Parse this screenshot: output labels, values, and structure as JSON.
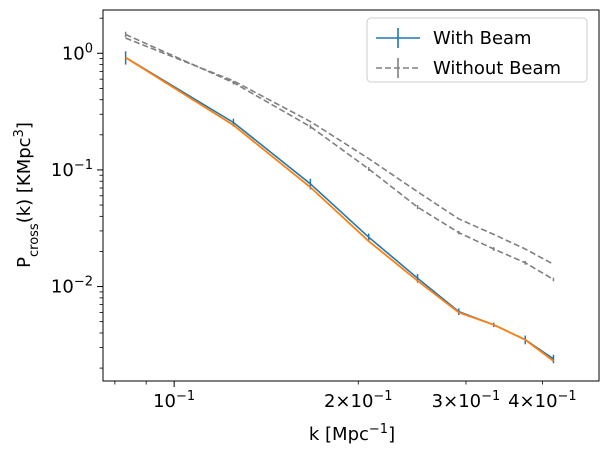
{
  "chart_data": {
    "type": "line",
    "xscale": "log",
    "yscale": "log",
    "xlim": [
      0.0765,
      0.495
    ],
    "ylim": [
      0.00155,
      2.35
    ],
    "xlabel": "k [Mpc^-1]",
    "ylabel": "P_cross(k) [KMpc^3]",
    "xticks": [
      {
        "value": 0.1,
        "mantissa": "",
        "base": "10",
        "exp": "−1"
      },
      {
        "value": 0.2,
        "mantissa": "2×",
        "base": "10",
        "exp": "−1"
      },
      {
        "value": 0.3,
        "mantissa": "3×",
        "base": "10",
        "exp": "−1"
      },
      {
        "value": 0.4,
        "mantissa": "4×",
        "base": "10",
        "exp": "−1"
      }
    ],
    "yticks": [
      {
        "value": 1,
        "base": "10",
        "exp": "0"
      },
      {
        "value": 0.1,
        "base": "10",
        "exp": "−1"
      },
      {
        "value": 0.01,
        "base": "10",
        "exp": "−2"
      }
    ],
    "legend_position": "top-right",
    "series": [
      {
        "name": "With Beam",
        "color": "#1f77b4",
        "style": "solid",
        "x": [
          0.0833,
          0.125,
          0.167,
          0.208,
          0.25,
          0.292,
          0.333,
          0.375,
          0.417
        ],
        "y": [
          0.92,
          0.255,
          0.076,
          0.0265,
          0.0118,
          0.0061,
          0.0047,
          0.0035,
          0.0024
        ],
        "err": [
          0.12,
          0.02,
          0.008,
          0.002,
          0.001,
          0.0004,
          0.0002,
          0.0003,
          0.0002
        ]
      },
      {
        "name": "",
        "color": "#ff7f0e",
        "style": "solid",
        "x": [
          0.0833,
          0.125,
          0.167,
          0.208,
          0.25,
          0.292,
          0.333,
          0.375,
          0.417
        ],
        "y": [
          0.92,
          0.242,
          0.071,
          0.0245,
          0.0112,
          0.006,
          0.0047,
          0.0035,
          0.0023
        ],
        "err": []
      },
      {
        "name": "Without Beam",
        "color": "#808080",
        "style": "dashed",
        "x": [
          0.0833,
          0.125,
          0.167,
          0.208,
          0.25,
          0.292,
          0.333,
          0.375,
          0.417
        ],
        "y": [
          1.45,
          0.56,
          0.235,
          0.102,
          0.048,
          0.029,
          0.021,
          0.016,
          0.0115
        ],
        "err": [
          0.08,
          0.02,
          0.01,
          0.004,
          0.002,
          0.001,
          0.0008,
          0.0006,
          0.0004
        ]
      },
      {
        "name": "",
        "color": "#808080",
        "style": "dashed",
        "x": [
          0.0833,
          0.125,
          0.167,
          0.208,
          0.25,
          0.292,
          0.333,
          0.375,
          0.417
        ],
        "y": [
          1.35,
          0.58,
          0.26,
          0.125,
          0.065,
          0.038,
          0.028,
          0.021,
          0.0155
        ],
        "err": []
      }
    ]
  }
}
